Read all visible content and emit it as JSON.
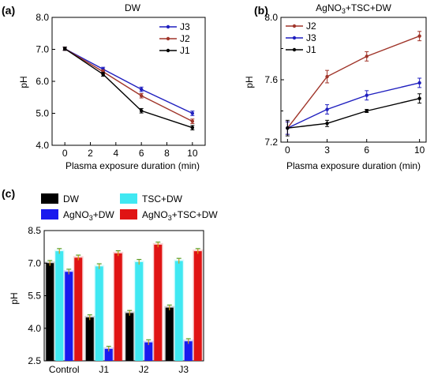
{
  "chart_data": [
    {
      "type": "line",
      "panel_label": "(a)",
      "title": "DW",
      "xlabel": "Plasma exposure duration (min)",
      "ylabel": "pH",
      "x": [
        0,
        3,
        6,
        10
      ],
      "xticks": [
        "0",
        "2",
        "4",
        "6",
        "8",
        "10"
      ],
      "xtick_values": [
        0,
        2,
        4,
        6,
        8,
        10
      ],
      "yticks": [
        "4.0",
        "5.0",
        "6.0",
        "7.0",
        "8.0"
      ],
      "ytick_values": [
        4.0,
        5.0,
        6.0,
        7.0,
        8.0
      ],
      "xlim": [
        -1,
        11
      ],
      "ylim": [
        4.0,
        8.0
      ],
      "legend_position": "top-right",
      "series": [
        {
          "name": "J3",
          "color": "#1f1fbf",
          "values": [
            7.02,
            6.38,
            5.75,
            5.0
          ],
          "errors": [
            0.05,
            0.06,
            0.07,
            0.07
          ]
        },
        {
          "name": "J2",
          "color": "#a0352a",
          "values": [
            7.02,
            6.3,
            5.55,
            4.75
          ],
          "errors": [
            0.05,
            0.06,
            0.07,
            0.07
          ]
        },
        {
          "name": "J1",
          "color": "#000000",
          "values": [
            7.02,
            6.22,
            5.08,
            4.55
          ],
          "errors": [
            0.05,
            0.06,
            0.07,
            0.07
          ]
        }
      ]
    },
    {
      "type": "line",
      "panel_label": "(b)",
      "title": "AgNO3+TSC+DW",
      "title_main": "AgNO",
      "title_sub": "3",
      "title_rest": "+TSC+DW",
      "xlabel": "Plasma exposure duration (min)",
      "ylabel": "pH",
      "x": [
        0,
        3,
        6,
        10
      ],
      "xticks": [
        "0",
        "3",
        "6",
        "10"
      ],
      "xtick_values": [
        0,
        3,
        6,
        10
      ],
      "yticks": [
        "7.2",
        "7.6",
        "8.0"
      ],
      "ytick_values": [
        7.2,
        7.6,
        8.0
      ],
      "minor_ytick_values": [
        7.4,
        7.8
      ],
      "xlim": [
        -0.5,
        10.5
      ],
      "ylim": [
        7.2,
        8.0
      ],
      "legend_position": "top-left",
      "series": [
        {
          "name": "J2",
          "color": "#a0352a",
          "values": [
            7.29,
            7.62,
            7.75,
            7.88
          ],
          "errors": [
            0.04,
            0.04,
            0.03,
            0.03
          ]
        },
        {
          "name": "J3",
          "color": "#1f1fbf",
          "values": [
            7.29,
            7.41,
            7.5,
            7.58
          ],
          "errors": [
            0.04,
            0.03,
            0.03,
            0.03
          ]
        },
        {
          "name": "J1",
          "color": "#000000",
          "values": [
            7.29,
            7.32,
            7.4,
            7.48
          ],
          "errors": [
            0.05,
            0.02,
            0.01,
            0.03
          ]
        }
      ]
    },
    {
      "type": "bar",
      "panel_label": "(c)",
      "ylabel": "pH",
      "categories": [
        "Control",
        "J1",
        "J2",
        "J3"
      ],
      "yticks": [
        "2.5",
        "4.0",
        "5.5",
        "7.0",
        "8.5"
      ],
      "ytick_values": [
        2.5,
        4.0,
        5.5,
        7.0,
        8.5
      ],
      "ylim": [
        2.5,
        8.5
      ],
      "legend_position": "top",
      "series": [
        {
          "name": "DW",
          "label_main": "DW",
          "label_sub": "",
          "label_rest": "",
          "color": "#000000",
          "values": [
            7.0,
            4.5,
            4.7,
            4.95
          ]
        },
        {
          "name": "TSC+DW",
          "label_main": "TSC+DW",
          "label_sub": "",
          "label_rest": "",
          "color": "#40e8f2",
          "values": [
            7.55,
            6.85,
            7.05,
            7.1
          ]
        },
        {
          "name": "AgNO3+DW",
          "label_main": "AgNO",
          "label_sub": "3",
          "label_rest": "+DW",
          "color": "#1919ee",
          "values": [
            6.6,
            3.05,
            3.35,
            3.4
          ]
        },
        {
          "name": "AgNO3+TSC+DW",
          "label_main": "AgNO",
          "label_sub": "3",
          "label_rest": "+TSC+DW",
          "color": "#e01414",
          "values": [
            7.25,
            7.45,
            7.85,
            7.55
          ]
        }
      ],
      "error": 0.12
    }
  ]
}
